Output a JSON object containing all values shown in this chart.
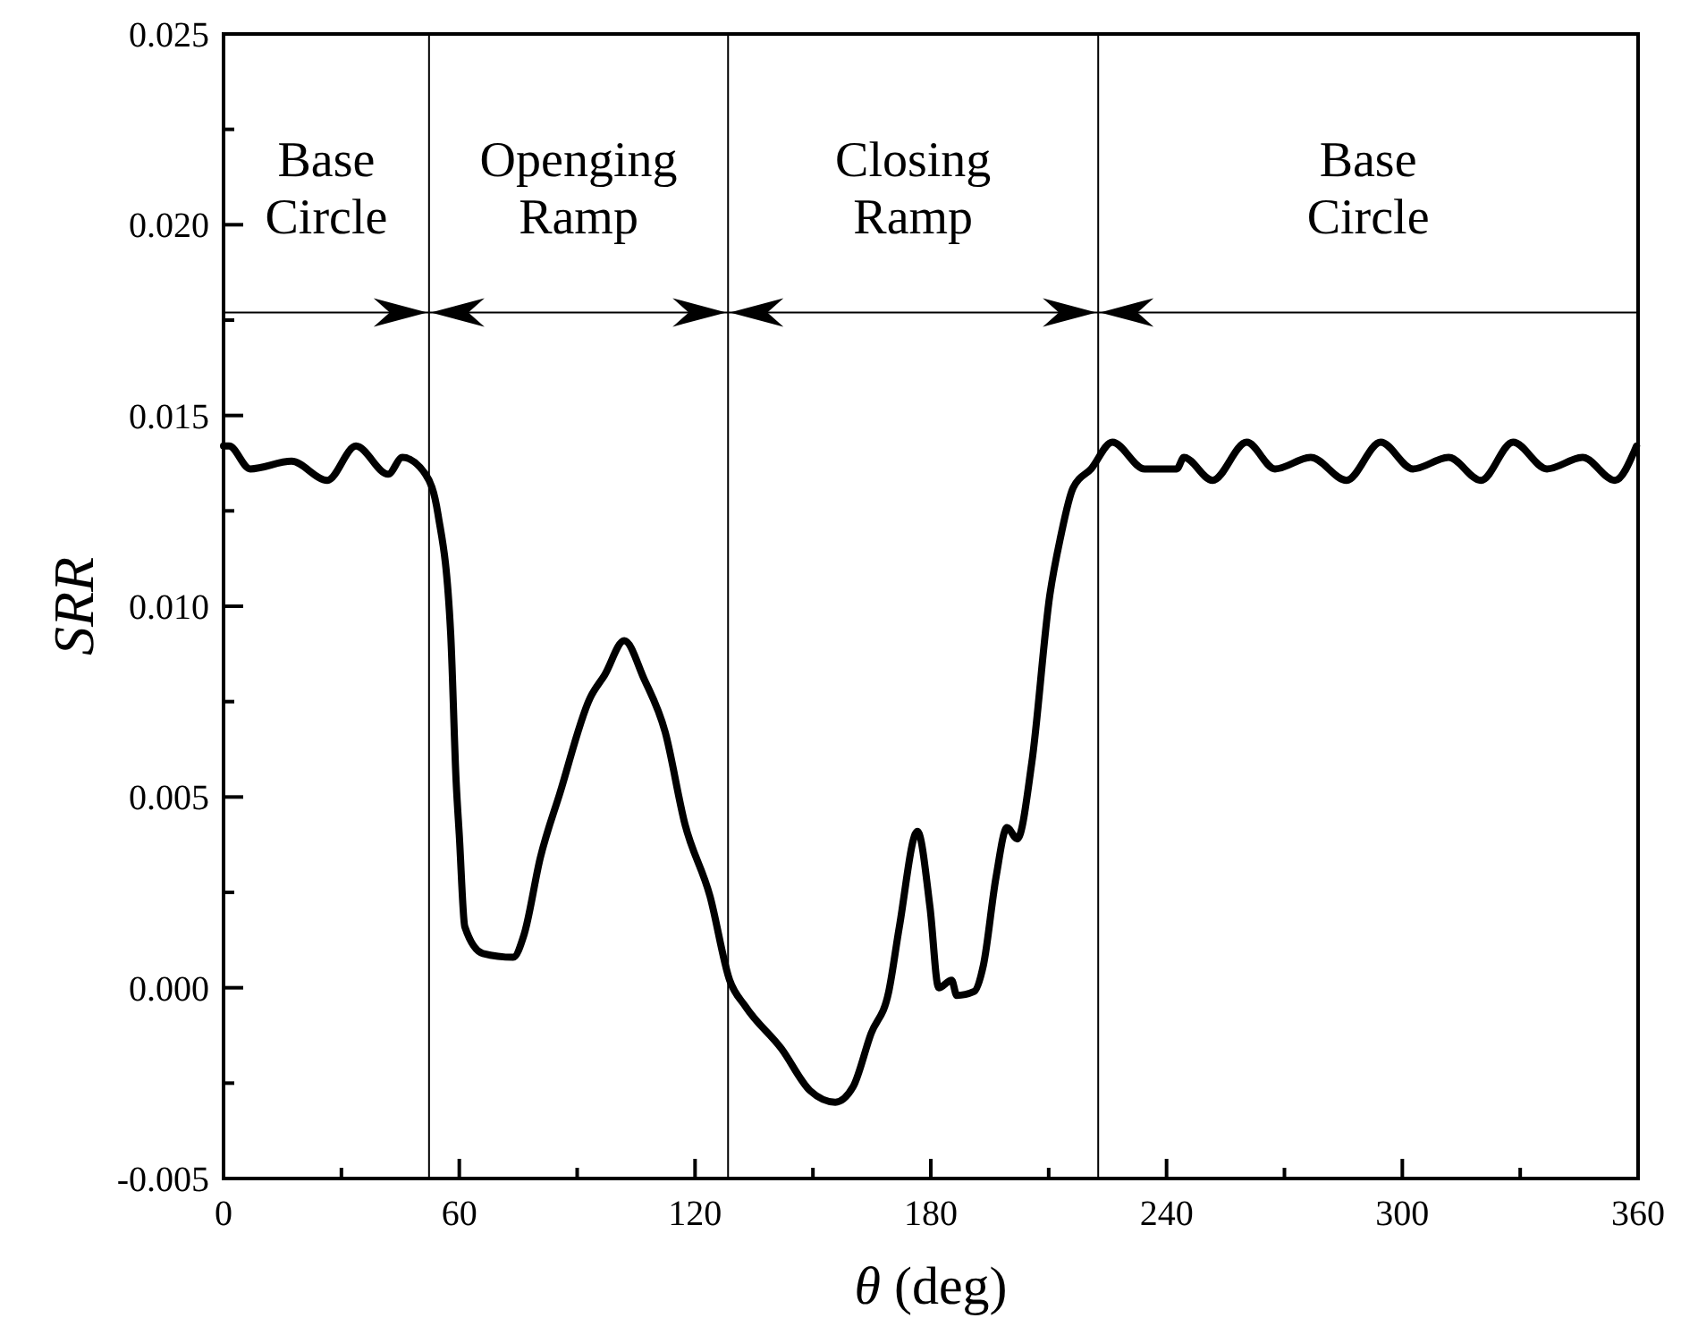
{
  "chart_data": {
    "type": "line",
    "xlabel": "θ (deg)",
    "ylabel": "SRR",
    "xlim": [
      0,
      360
    ],
    "ylim": [
      -0.005,
      0.025
    ],
    "xticks": [
      0,
      {
        "value": 30,
        "label": null
      },
      60,
      {
        "value": 90,
        "label": null
      },
      120,
      {
        "value": 150,
        "label": null
      },
      180,
      {
        "value": 210,
        "label": null
      },
      240,
      {
        "value": 270,
        "label": null
      },
      300,
      {
        "value": 330,
        "label": null
      },
      360
    ],
    "yticks": [
      {
        "value": -0.005,
        "label": "-0.005"
      },
      {
        "value": -0.0025,
        "label": null
      },
      {
        "value": 0,
        "label": "0.000"
      },
      {
        "value": 0.0025,
        "label": null
      },
      {
        "value": 0.005,
        "label": "0.005"
      },
      {
        "value": 0.0075,
        "label": null
      },
      {
        "value": 0.01,
        "label": "0.010"
      },
      {
        "value": 0.0125,
        "label": null
      },
      {
        "value": 0.015,
        "label": "0.015"
      },
      {
        "value": 0.0175,
        "label": null
      },
      {
        "value": 0.02,
        "label": "0.020"
      },
      {
        "value": 0.0225,
        "label": null
      },
      {
        "value": 0.025,
        "label": "0.025"
      }
    ],
    "grid": false,
    "line_style": "solid",
    "marker": "none",
    "series": [
      {
        "color": "#000000",
        "x": [
          0,
          1.4,
          6.8,
          17.3,
          26.4,
          33.7,
          41.9,
          45.5,
          51.4,
          54.6,
          57.8,
          59.2,
          60,
          61.4,
          66,
          73.7,
          76.5,
          80.6,
          85.6,
          93.3,
          97,
          102,
          107,
          112.4,
          117.4,
          123.8,
          128.8,
          132.9,
          142,
          149.3,
          155.7,
          160.2,
          164.8,
          169.3,
          172,
          176.6,
          179.8,
          182,
          185.3,
          186.6,
          191,
          193.4,
          196.6,
          199.4,
          202,
          205.7,
          210.3,
          213,
          216.2,
          220.8,
          226.2,
          234.4,
          242.6,
          244.4,
          251.7,
          260.4,
          267.6,
          276.7,
          285.8,
          294.5,
          302.7,
          311.8,
          320,
          328.2,
          336.8,
          345.9,
          354.1,
          359.6
        ],
        "values": [
          0.0142,
          0.0142,
          0.0136,
          0.0138,
          0.0133,
          0.0142,
          0.01346,
          0.0139,
          0.01346,
          0.0124,
          0.0093,
          0.0054,
          0.004,
          0.0016,
          0.0009,
          0.0008,
          0.0014,
          0.0034,
          0.0051,
          0.0076,
          0.0082,
          0.0091,
          0.0081,
          0.0067,
          0.0043,
          0.0024,
          0.0002,
          -0.0005,
          -0.0016,
          -0.0027,
          -0.003,
          -0.0026,
          -0.0012,
          -0.0001,
          0.0016,
          0.0041,
          0.0021,
          0,
          0.0002,
          -0.0002,
          -0.0001,
          0.0006,
          0.0029,
          0.0042,
          0.0039,
          0.0059,
          0.0103,
          0.0118,
          0.0131,
          0.0136,
          0.0143,
          0.0136,
          0.0136,
          0.0139,
          0.0133,
          0.0143,
          0.0136,
          0.0139,
          0.0133,
          0.0143,
          0.0136,
          0.0139,
          0.0133,
          0.0143,
          0.0136,
          0.0139,
          0.0133,
          0.0142
        ]
      }
    ],
    "ref_lines": [
      {
        "axis": "x",
        "value": 52.3,
        "color": "#000000"
      },
      {
        "axis": "x",
        "value": 128.4,
        "color": "#000000"
      },
      {
        "axis": "x",
        "value": 222.6,
        "color": "#000000"
      },
      {
        "axis": "y",
        "value": 0.0177,
        "color": "#000000"
      }
    ],
    "annotations": [
      "Base\nCircle",
      "Openging\nRamp",
      "Closing\nRamp",
      "Base\nCircle"
    ]
  }
}
